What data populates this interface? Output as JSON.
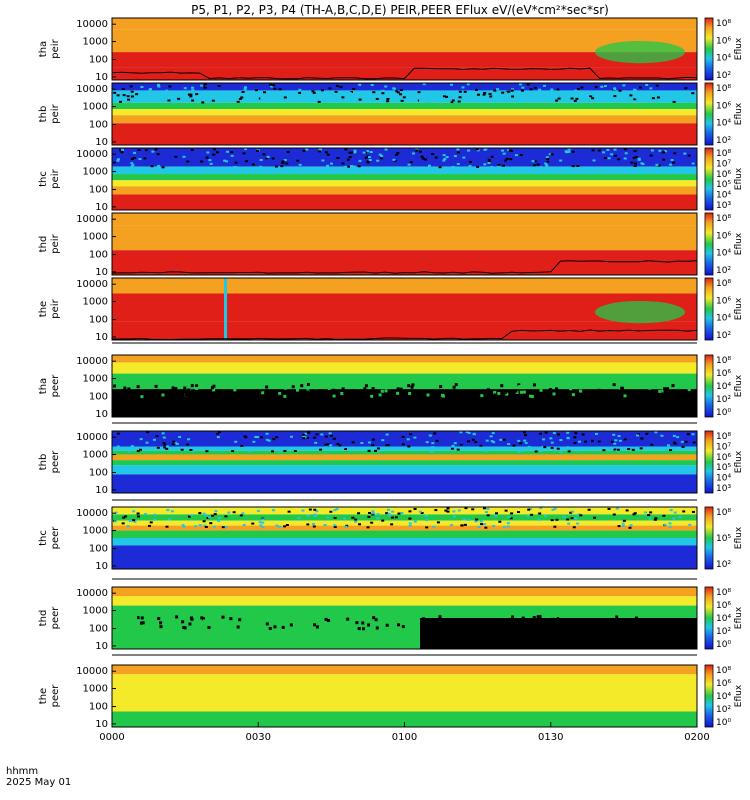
{
  "title": "P5, P1, P2, P3, P4 (TH-A,B,C,D,E) PEIR,PEER EFlux eV/(eV*cm²*sec*sr)",
  "footer": {
    "line1": "hhmm",
    "line2": "2025 May 01"
  },
  "x_ticks": [
    "0000",
    "0030",
    "0100",
    "0130",
    "0200"
  ],
  "colorbar_label": "Eflux",
  "colors": {
    "black": "#000000",
    "blue": "#1c2bd6",
    "cyan": "#22c6e6",
    "green": "#22c84a",
    "yellow": "#f4ea2a",
    "orange": "#f4a020",
    "red": "#e02018"
  },
  "chart_data": {
    "type": "heatmap",
    "x_range_hhmm": [
      "0000",
      "0200"
    ],
    "y_scale": "log",
    "y_range_eV": [
      6,
      25000
    ],
    "panels": [
      {
        "label": "tha peir",
        "spacecraft": "tha",
        "instrument": "peir",
        "y_ticks": [
          "10000",
          "1000",
          "100",
          "10"
        ],
        "cb_ticks": [
          "10⁸",
          "10⁶",
          "10⁴",
          "10²"
        ],
        "overlay_line": true
      },
      {
        "label": "thb peir",
        "spacecraft": "thb",
        "instrument": "peir",
        "y_ticks": [
          "10000",
          "1000",
          "100",
          "10"
        ],
        "cb_ticks": [
          "10⁸",
          "10⁶",
          "10⁴",
          "10²"
        ],
        "overlay_line": false
      },
      {
        "label": "thc peir",
        "spacecraft": "thc",
        "instrument": "peir",
        "y_ticks": [
          "10000",
          "1000",
          "100",
          "10"
        ],
        "cb_ticks": [
          "10⁸",
          "10⁷",
          "10⁶",
          "10⁵",
          "10⁴",
          "10³"
        ],
        "overlay_line": false
      },
      {
        "label": "thd peir",
        "spacecraft": "thd",
        "instrument": "peir",
        "y_ticks": [
          "10000",
          "1000",
          "100",
          "10"
        ],
        "cb_ticks": [
          "10⁸",
          "10⁶",
          "10⁴",
          "10²"
        ],
        "overlay_line": true
      },
      {
        "label": "the peir",
        "spacecraft": "the",
        "instrument": "peir",
        "y_ticks": [
          "10000",
          "1000",
          "100",
          "10"
        ],
        "cb_ticks": [
          "10⁸",
          "10⁶",
          "10⁴",
          "10²"
        ],
        "overlay_line": true
      },
      {
        "label": "tha peer",
        "spacecraft": "tha",
        "instrument": "peer",
        "y_ticks": [
          "10000",
          "1000",
          "100",
          "10"
        ],
        "cb_ticks": [
          "10⁸",
          "10⁶",
          "10⁴",
          "10²",
          "10⁰"
        ],
        "overlay_line": false
      },
      {
        "label": "thb peer",
        "spacecraft": "thb",
        "instrument": "peer",
        "y_ticks": [
          "10000",
          "1000",
          "100",
          "10"
        ],
        "cb_ticks": [
          "10⁸",
          "10⁷",
          "10⁶",
          "10⁵",
          "10⁴",
          "10³"
        ],
        "overlay_line": false
      },
      {
        "label": "thc peer",
        "spacecraft": "thc",
        "instrument": "peer",
        "y_ticks": [
          "10000",
          "1000",
          "100",
          "10"
        ],
        "cb_ticks": [
          "10⁸",
          "10⁵",
          "10²"
        ],
        "overlay_line": false
      },
      {
        "label": "thd peer",
        "spacecraft": "thd",
        "instrument": "peer",
        "y_ticks": [
          "10000",
          "1000",
          "100",
          "10"
        ],
        "cb_ticks": [
          "10⁸",
          "10⁶",
          "10⁴",
          "10²",
          "10⁰"
        ],
        "overlay_line": false
      },
      {
        "label": "the peer",
        "spacecraft": "the",
        "instrument": "peer",
        "y_ticks": [
          "10000",
          "1000",
          "100",
          "10"
        ],
        "cb_ticks": [
          "10⁸",
          "10⁶",
          "10⁴",
          "10²",
          "10⁰"
        ],
        "overlay_line": false
      }
    ]
  }
}
